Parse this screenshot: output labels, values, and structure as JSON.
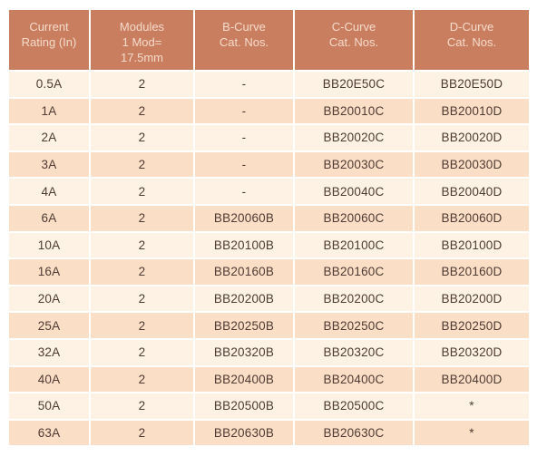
{
  "table": {
    "header": {
      "columns": [
        {
          "id": "current_rating",
          "lines": [
            "Current",
            "Rating (In)"
          ]
        },
        {
          "id": "modules",
          "lines": [
            "Modules",
            "1 Mod=",
            "17.5mm"
          ]
        },
        {
          "id": "b_curve",
          "lines": [
            "B-Curve",
            "Cat. Nos."
          ]
        },
        {
          "id": "c_curve",
          "lines": [
            "C-Curve",
            "Cat. Nos."
          ]
        },
        {
          "id": "d_curve",
          "lines": [
            "D-Curve",
            "Cat. Nos."
          ]
        }
      ]
    },
    "rows": [
      {
        "current_rating": "0.5A",
        "modules": "2",
        "b_curve": "-",
        "c_curve": "BB20E50C",
        "d_curve": "BB20E50D"
      },
      {
        "current_rating": "1A",
        "modules": "2",
        "b_curve": "-",
        "c_curve": "BB20010C",
        "d_curve": "BB20010D"
      },
      {
        "current_rating": "2A",
        "modules": "2",
        "b_curve": "-",
        "c_curve": "BB20020C",
        "d_curve": "BB20020D"
      },
      {
        "current_rating": "3A",
        "modules": "2",
        "b_curve": "-",
        "c_curve": "BB20030C",
        "d_curve": "BB20030D"
      },
      {
        "current_rating": "4A",
        "modules": "2",
        "b_curve": "-",
        "c_curve": "BB20040C",
        "d_curve": "BB20040D"
      },
      {
        "current_rating": "6A",
        "modules": "2",
        "b_curve": "BB20060B",
        "c_curve": "BB20060C",
        "d_curve": "BB20060D"
      },
      {
        "current_rating": "10A",
        "modules": "2",
        "b_curve": "BB20100B",
        "c_curve": "BB20100C",
        "d_curve": "BB20100D"
      },
      {
        "current_rating": "16A",
        "modules": "2",
        "b_curve": "BB20160B",
        "c_curve": "BB20160C",
        "d_curve": "BB20160D"
      },
      {
        "current_rating": "20A",
        "modules": "2",
        "b_curve": "BB20200B",
        "c_curve": "BB20200C",
        "d_curve": "BB20200D"
      },
      {
        "current_rating": "25A",
        "modules": "2",
        "b_curve": "BB20250B",
        "c_curve": "BB20250C",
        "d_curve": "BB20250D"
      },
      {
        "current_rating": "32A",
        "modules": "2",
        "b_curve": "BB20320B",
        "c_curve": "BB20320C",
        "d_curve": "BB20320D"
      },
      {
        "current_rating": "40A",
        "modules": "2",
        "b_curve": "BB20400B",
        "c_curve": "BB20400C",
        "d_curve": "BB20400D"
      },
      {
        "current_rating": "50A",
        "modules": "2",
        "b_curve": "BB20500B",
        "c_curve": "BB20500C",
        "d_curve": "*"
      },
      {
        "current_rating": "63A",
        "modules": "2",
        "b_curve": "BB20630B",
        "c_curve": "BB20630C",
        "d_curve": "*"
      }
    ]
  },
  "colors": {
    "header_bg": "#c97e60",
    "header_text": "#f5dbcb",
    "row_light": "#fdf2e3",
    "row_dark": "#fbdec6",
    "body_text": "#4e3b33",
    "grid_line": "#ffffff"
  }
}
